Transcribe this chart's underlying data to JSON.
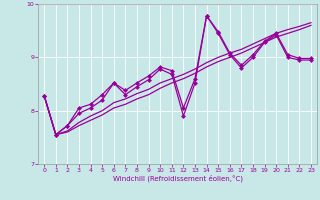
{
  "xlabel": "Windchill (Refroidissement éolien,°C)",
  "ylabel": "",
  "xlim": [
    -0.5,
    23.5
  ],
  "ylim": [
    7,
    10
  ],
  "yticks": [
    7,
    8,
    9,
    10
  ],
  "xticks": [
    0,
    1,
    2,
    3,
    4,
    5,
    6,
    7,
    8,
    9,
    10,
    11,
    12,
    13,
    14,
    15,
    16,
    17,
    18,
    19,
    20,
    21,
    22,
    23
  ],
  "bg_color": "#c8e8e8",
  "line_color": "#990099",
  "line1_x": [
    0,
    1,
    2,
    3,
    4,
    5,
    6,
    7,
    8,
    9,
    10,
    11,
    12,
    13,
    14,
    15,
    16,
    17,
    18,
    19,
    20,
    21,
    22,
    23
  ],
  "line1_y": [
    8.28,
    7.55,
    7.72,
    7.95,
    8.05,
    8.2,
    8.52,
    8.3,
    8.45,
    8.58,
    8.78,
    8.68,
    7.9,
    8.52,
    9.78,
    9.45,
    9.05,
    8.8,
    9.0,
    9.28,
    9.42,
    9.0,
    8.95,
    8.95
  ],
  "line2_x": [
    0,
    1,
    2,
    3,
    4,
    5,
    6,
    7,
    8,
    9,
    10,
    11,
    12,
    13,
    14,
    15,
    16,
    17,
    18,
    19,
    20,
    21,
    22,
    23
  ],
  "line2_y": [
    8.28,
    7.55,
    7.72,
    8.05,
    8.12,
    8.3,
    8.52,
    8.38,
    8.52,
    8.65,
    8.82,
    8.75,
    8.05,
    8.6,
    9.78,
    9.48,
    9.08,
    8.85,
    9.05,
    9.3,
    9.45,
    9.05,
    8.98,
    8.98
  ],
  "trend1_x": [
    0,
    1,
    2,
    3,
    4,
    5,
    6,
    7,
    8,
    9,
    10,
    11,
    12,
    13,
    14,
    15,
    16,
    17,
    18,
    19,
    20,
    21,
    22,
    23
  ],
  "trend1_y": [
    8.28,
    7.55,
    7.6,
    7.72,
    7.82,
    7.92,
    8.05,
    8.12,
    8.22,
    8.3,
    8.42,
    8.52,
    8.6,
    8.7,
    8.82,
    8.92,
    9.0,
    9.08,
    9.18,
    9.28,
    9.38,
    9.45,
    9.52,
    9.6
  ],
  "trend2_x": [
    0,
    1,
    2,
    3,
    4,
    5,
    6,
    7,
    8,
    9,
    10,
    11,
    12,
    13,
    14,
    15,
    16,
    17,
    18,
    19,
    20,
    21,
    22,
    23
  ],
  "trend2_y": [
    8.28,
    7.55,
    7.62,
    7.78,
    7.9,
    8.0,
    8.15,
    8.22,
    8.32,
    8.4,
    8.52,
    8.6,
    8.68,
    8.78,
    8.9,
    9.0,
    9.08,
    9.15,
    9.25,
    9.35,
    9.45,
    9.52,
    9.58,
    9.65
  ],
  "marker_size": 2.5,
  "linewidth": 0.9
}
